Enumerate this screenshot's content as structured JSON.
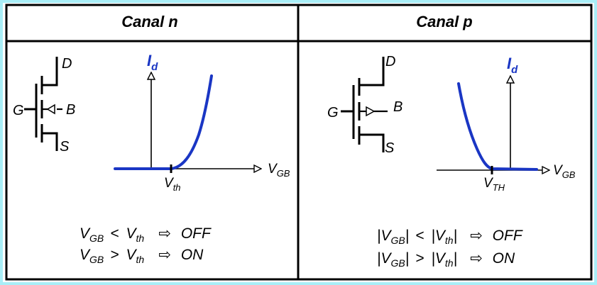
{
  "colors": {
    "frame": "#a9eef7",
    "curve": "#1a36c4",
    "id_label": "#1a36c4",
    "lines": "#000000"
  },
  "panels": [
    {
      "header": "Canal n",
      "terminals": {
        "drain": "D",
        "gate": "G",
        "body": "B",
        "source": "S"
      },
      "axis": {
        "y_main": "I",
        "y_sub": "d",
        "x_main": "V",
        "x_sub": "GB",
        "threshold_main": "V",
        "threshold_sub": "th"
      },
      "rules": [
        {
          "left_main": "V",
          "left_sub": "GB",
          "op": "<",
          "right_main": "V",
          "right_sub": "th",
          "arrow": "⇨",
          "result": "OFF"
        },
        {
          "left_main": "V",
          "left_sub": "GB",
          "op": ">",
          "right_main": "V",
          "right_sub": "th",
          "arrow": "⇨",
          "result": "ON"
        }
      ]
    },
    {
      "header": "Canal p",
      "terminals": {
        "drain": "D",
        "gate": "G",
        "body": "B",
        "source": "S"
      },
      "axis": {
        "y_main": "I",
        "y_sub": "d",
        "x_main": "V",
        "x_sub": "GB",
        "threshold_main": "V",
        "threshold_sub": "TH"
      },
      "rules": [
        {
          "left_main": "|V",
          "left_sub": "GB",
          "left_end": "|",
          "op": "<",
          "right_main": "|V",
          "right_sub": "th",
          "right_end": "|",
          "arrow": "⇨",
          "result": "OFF"
        },
        {
          "left_main": "|V",
          "left_sub": "GB",
          "left_end": "|",
          "op": ">",
          "right_main": "|V",
          "right_sub": "th",
          "right_end": "|",
          "arrow": "⇨",
          "result": "ON"
        }
      ]
    }
  ]
}
